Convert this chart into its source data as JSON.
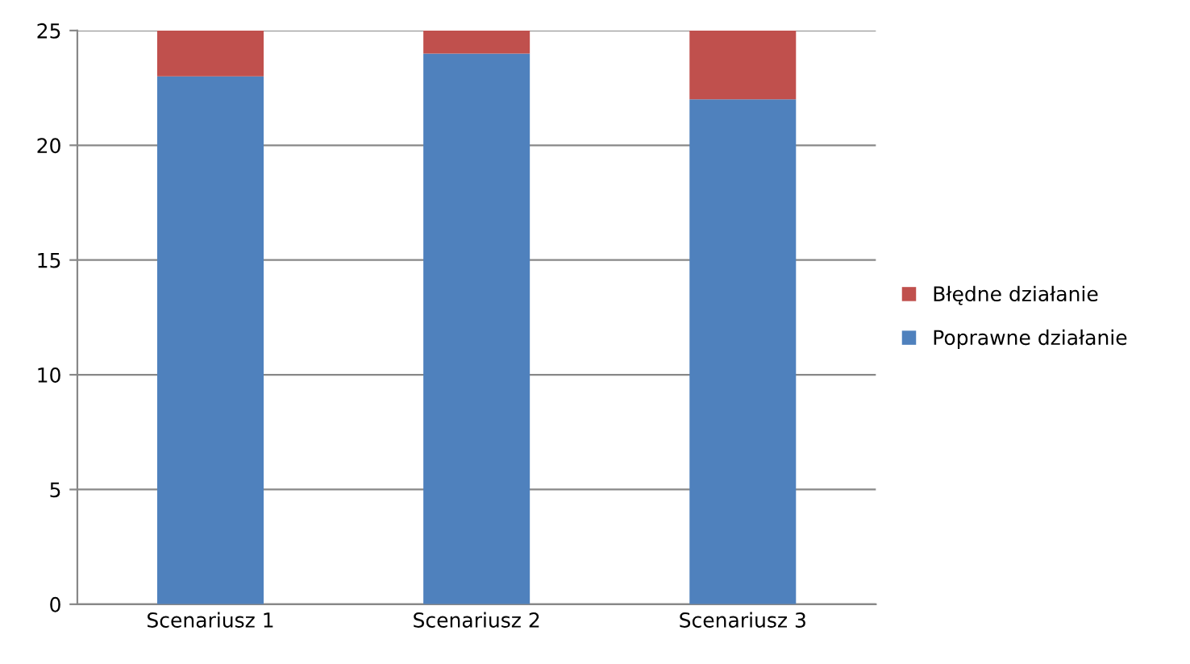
{
  "chart_data": {
    "type": "bar",
    "stacked": true,
    "categories": [
      "Scenariusz 1",
      "Scenariusz 2",
      "Scenariusz 3"
    ],
    "series": [
      {
        "name": "Poprawne działanie",
        "color": "#4f81bd",
        "values": [
          23,
          24,
          22
        ]
      },
      {
        "name": "Błędne działanie",
        "color": "#c0504d",
        "values": [
          2,
          1,
          3
        ]
      }
    ],
    "ylim": [
      0,
      25
    ],
    "yticks": [
      0,
      5,
      10,
      15,
      20,
      25
    ],
    "grid": "y",
    "legend": "right"
  }
}
